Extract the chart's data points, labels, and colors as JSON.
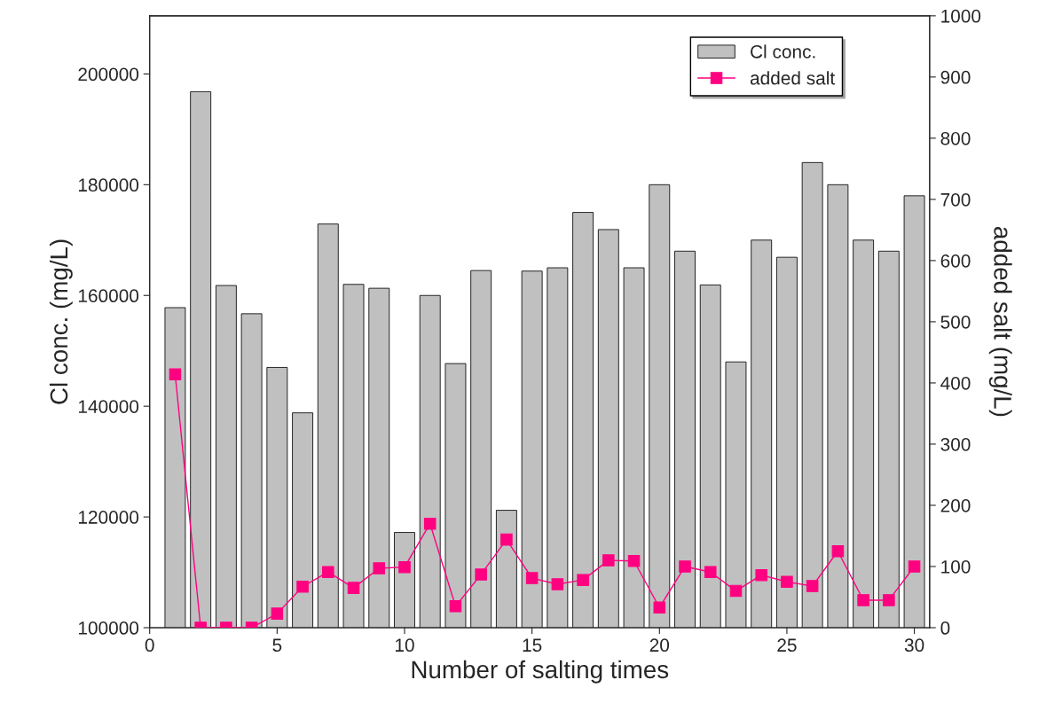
{
  "chart_data": {
    "type": "bar",
    "xlabel": "Number of salting times",
    "ylabel": "Cl conc. (mg/L)",
    "y2label": "added salt (mg/L)",
    "x": [
      1,
      2,
      3,
      4,
      5,
      6,
      7,
      8,
      9,
      10,
      11,
      12,
      13,
      14,
      15,
      16,
      17,
      18,
      19,
      20,
      21,
      22,
      23,
      24,
      25,
      26,
      27,
      28,
      29,
      30
    ],
    "series": [
      {
        "name": "Cl conc.",
        "color": "#c0c0c0",
        "values": [
          157800,
          196800,
          161800,
          156700,
          147000,
          138800,
          172900,
          162000,
          161300,
          117200,
          160000,
          147700,
          164500,
          121200,
          164400,
          165000,
          175000,
          171900,
          165000,
          180000,
          168000,
          161900,
          148000,
          170000,
          166900,
          184000,
          180000,
          170000,
          168000,
          178000
        ]
      },
      {
        "name": "added salt",
        "type": "line",
        "axis": "y2",
        "color": "#ff0080",
        "marker": "square",
        "values": [
          414,
          0,
          0,
          0,
          23,
          67,
          91,
          65,
          97,
          99,
          170,
          35,
          87,
          144,
          81,
          71,
          78,
          110,
          109,
          33,
          100,
          91,
          60,
          86,
          75,
          68,
          125,
          45,
          45,
          100
        ]
      }
    ],
    "xlim": [
      0,
      30.6
    ],
    "xticks": [
      0,
      5,
      10,
      15,
      20,
      25,
      30
    ],
    "ylim": [
      100000,
      210500
    ],
    "yticks": [
      100000,
      120000,
      140000,
      160000,
      180000,
      200000
    ],
    "y2lim": [
      0,
      1000
    ],
    "y2ticks": [
      0,
      100,
      200,
      300,
      400,
      500,
      600,
      700,
      800,
      900,
      1000
    ],
    "grid": false,
    "legend": "top right"
  }
}
